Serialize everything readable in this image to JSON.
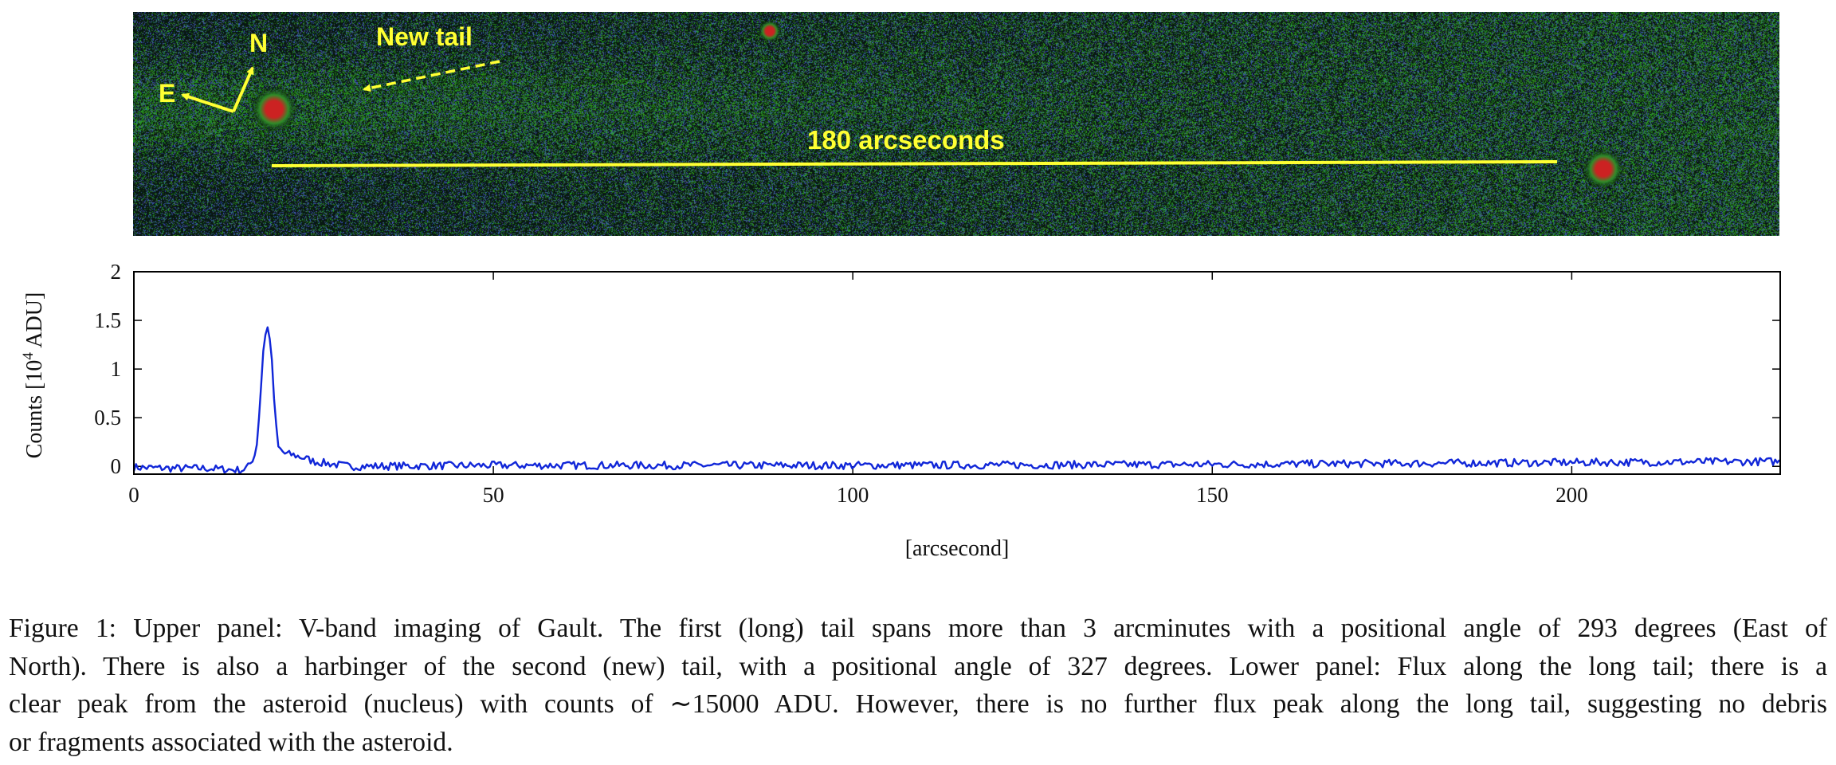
{
  "image_panel": {
    "label_north": "N",
    "label_east": "E",
    "label_new_tail": "New tail",
    "scale_label": "180 arcseconds",
    "colors": {
      "background": "#0c1a12",
      "dust_green": "#2f8f2a",
      "noise_blue": "#3a56c8",
      "annotation_yellow": "#ffff33",
      "star_red": "#cc2222"
    }
  },
  "chart_data": {
    "type": "line",
    "xlabel": "[arcsecond]",
    "ylabel": "Counts [10^4 ADU]",
    "ylabel_base": "Counts [10",
    "ylabel_exp": "4",
    "ylabel_unit": " ADU]",
    "xlim": [
      0,
      229
    ],
    "ylim": [
      0,
      2
    ],
    "y_plot_min": -0.08,
    "xticks": [
      0,
      50,
      100,
      150,
      200
    ],
    "yticks": [
      0,
      0.5,
      1,
      1.5,
      2
    ],
    "xtick_labels": [
      "0",
      "50",
      "100",
      "150",
      "200"
    ],
    "ytick_labels": [
      "0",
      "0.5",
      "1",
      "1.5",
      "2"
    ],
    "line_color": "#1026d8",
    "series": [
      {
        "x": [
          0,
          5,
          10,
          15,
          16,
          17,
          17.5,
          18,
          18.5,
          19,
          19.5,
          20,
          21,
          22,
          23,
          24,
          25,
          26,
          28,
          30,
          50,
          100,
          150,
          200,
          229
        ],
        "y": [
          -0.01,
          -0.02,
          -0.02,
          -0.04,
          0.0,
          0.15,
          0.6,
          1.2,
          1.45,
          1.3,
          0.7,
          0.2,
          0.13,
          0.12,
          0.1,
          0.08,
          0.05,
          0.04,
          0.02,
          0.0,
          0.01,
          0.01,
          0.02,
          0.04,
          0.05
        ]
      }
    ]
  },
  "caption": {
    "lines": [
      "Figure 1: Upper panel: V-band imaging of Gault. The first (long) tail spans more than 3 arcminutes with a positional angle of 293 degrees (East of",
      "North). There is also a harbinger of the second (new) tail, with a positional angle of 327 degrees. Lower panel: Flux along the long tail; there is a",
      "clear peak from the asteroid (nucleus) with counts of ∼15000 ADU. However, there is no further flux peak along the long tail, suggesting no debris",
      "or fragments associated with the asteroid."
    ]
  }
}
